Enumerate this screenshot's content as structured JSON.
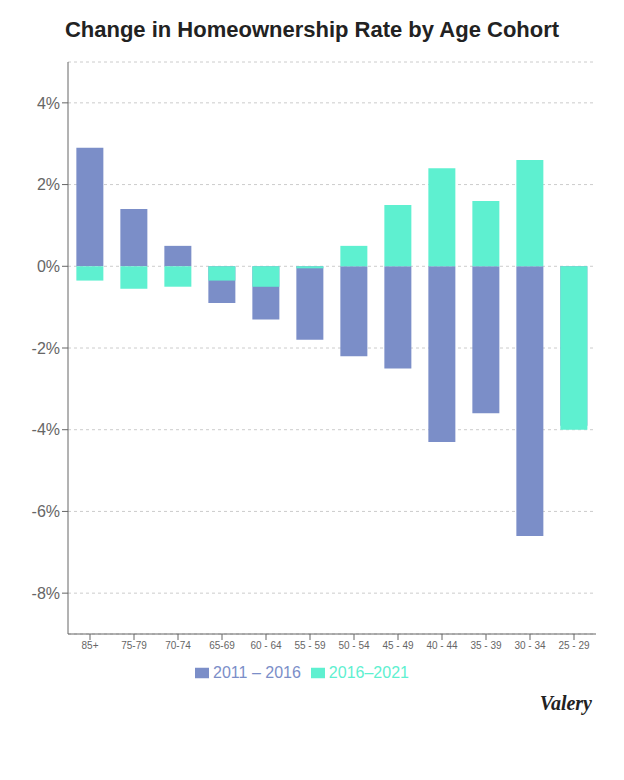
{
  "chart_data": {
    "type": "bar",
    "title": "Change in Homeownership Rate by Age Cohort",
    "categories": [
      "85+",
      "75-79",
      "70-74",
      "65-69",
      "60 - 64",
      "55 - 59",
      "50 - 54",
      "45 - 49",
      "40 - 44",
      "35 - 39",
      "30 - 34",
      "25 - 29"
    ],
    "series": [
      {
        "name": "2011 – 2016",
        "color": "#7b8ec8",
        "values": [
          2.9,
          1.4,
          0.5,
          -0.9,
          -1.3,
          -1.8,
          -2.2,
          -2.5,
          -4.3,
          -3.6,
          -6.6,
          -3.9
        ]
      },
      {
        "name": "2016–2021",
        "color": "#5ef0d0",
        "values": [
          -0.35,
          -0.55,
          -0.5,
          -0.35,
          -0.5,
          -0.05,
          0.5,
          1.5,
          2.4,
          1.6,
          2.6,
          -4.0
        ]
      }
    ],
    "ylim": [
      -9.0,
      5.0
    ],
    "yticks": [
      {
        "value": 4,
        "label": "4%"
      },
      {
        "value": 2,
        "label": "2%"
      },
      {
        "value": 0,
        "label": "0%"
      },
      {
        "value": -2,
        "label": "-2%"
      },
      {
        "value": -4,
        "label": "-4%"
      },
      {
        "value": -6,
        "label": "-6%"
      },
      {
        "value": -8,
        "label": "-8%"
      }
    ],
    "grid": true,
    "legend": "bottom",
    "annotations": [
      "Valery"
    ]
  }
}
